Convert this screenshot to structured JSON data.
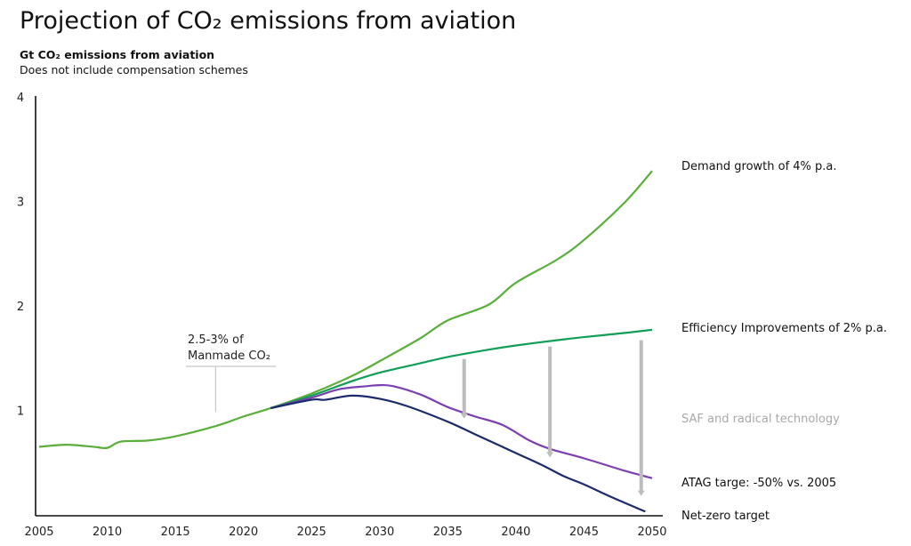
{
  "title": "Projection of CO₂ emissions from aviation",
  "subtitle": "Gt CO₂ emissions from aviation",
  "note": "Does not include compensation schemes",
  "chart_data": {
    "type": "line",
    "title": "Projection of CO₂ emissions from aviation",
    "ylabel": "Gt CO₂ emissions from aviation",
    "xlim": [
      2005,
      2050
    ],
    "ylim": [
      0,
      4
    ],
    "xticks": [
      "2005",
      "2010",
      "2015",
      "2020",
      "2025",
      "2030",
      "2035",
      "2040",
      "2045",
      "2050"
    ],
    "yticks": [
      "1",
      "2",
      "3",
      "4"
    ],
    "grid": false,
    "legend": "direct labels at right end of lines",
    "series": [
      {
        "name": "Demand growth of 4% p.a.",
        "color": "#5aae3c",
        "x": [
          2005,
          2007,
          2009,
          2010,
          2011,
          2013,
          2015,
          2018,
          2020,
          2022,
          2025,
          2028,
          2030,
          2033,
          2035,
          2038,
          2040,
          2043,
          2045,
          2048,
          2050
        ],
        "y": [
          0.66,
          0.68,
          0.66,
          0.65,
          0.71,
          0.72,
          0.76,
          0.86,
          0.95,
          1.03,
          1.17,
          1.34,
          1.48,
          1.7,
          1.87,
          2.02,
          2.23,
          2.45,
          2.64,
          3.0,
          3.3
        ]
      },
      {
        "name": "Efficiency Improvements of 2% p.a.",
        "color": "#119e57",
        "x": [
          2022,
          2025,
          2028,
          2030,
          2033,
          2035,
          2038,
          2040,
          2043,
          2045,
          2048,
          2050
        ],
        "y": [
          1.03,
          1.15,
          1.29,
          1.37,
          1.46,
          1.52,
          1.59,
          1.63,
          1.68,
          1.71,
          1.75,
          1.78
        ]
      },
      {
        "name": "ATAG targe: -50% vs. 2005",
        "color": "#7b3fb0",
        "x": [
          2022,
          2025,
          2027,
          2029,
          2030,
          2031,
          2033,
          2035,
          2037,
          2039,
          2041,
          2042.5,
          2045,
          2048,
          2050
        ],
        "y": [
          1.03,
          1.13,
          1.21,
          1.24,
          1.25,
          1.24,
          1.16,
          1.04,
          0.95,
          0.87,
          0.72,
          0.64,
          0.55,
          0.43,
          0.36
        ],
        "label_color": "#111111"
      },
      {
        "name": "Net-zero target",
        "color": "#1b2a6b",
        "x": [
          2022,
          2025,
          2026,
          2028,
          2030,
          2032,
          2035,
          2037,
          2040,
          2042,
          2043.5,
          2045,
          2047,
          2049.5
        ],
        "y": [
          1.03,
          1.11,
          1.11,
          1.15,
          1.12,
          1.05,
          0.9,
          0.78,
          0.6,
          0.48,
          0.38,
          0.3,
          0.18,
          0.04
        ]
      }
    ],
    "arrows": [
      {
        "x": 2036.2,
        "from": 1.5,
        "to": 0.93
      },
      {
        "x": 2042.5,
        "from": 1.62,
        "to": 0.56
      },
      {
        "x": 2049.2,
        "from": 1.68,
        "to": 0.19
      }
    ],
    "arrow_label": "SAF and radical technology",
    "arrow_color": "#bdbdbd",
    "annotation": {
      "lines": [
        "2.5-3% of",
        "Manmade CO₂"
      ],
      "x": 2019,
      "y": 1.0
    }
  }
}
